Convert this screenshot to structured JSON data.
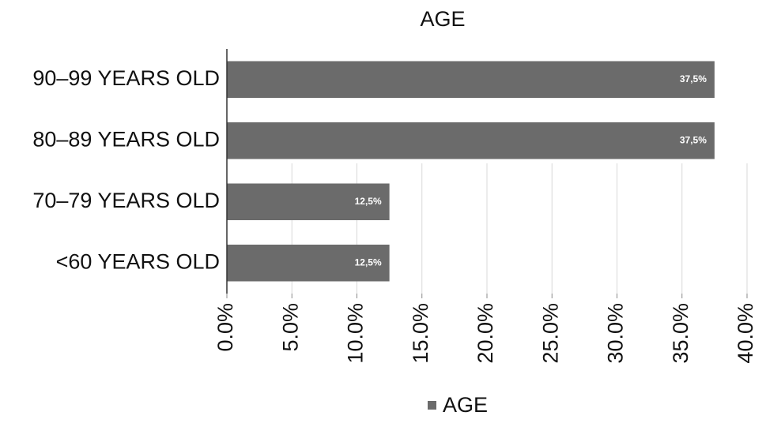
{
  "chart_data": {
    "type": "bar",
    "orientation": "horizontal",
    "title": "AGE",
    "categories": [
      "90–99 YEARS OLD",
      "80–89 YEARS OLD",
      "70–79 YEARS OLD",
      "<60 YEARS OLD"
    ],
    "series": [
      {
        "name": "AGE",
        "color": "#6b6b6b",
        "values": [
          37.5,
          37.5,
          12.5,
          12.5
        ],
        "value_labels": [
          "37,5%",
          "37,5%",
          "12,5%",
          "12,5%"
        ]
      }
    ],
    "xlim": [
      0,
      40
    ],
    "xticks": [
      {
        "value": 0,
        "label": "0.0%"
      },
      {
        "value": 5,
        "label": "5.0%"
      },
      {
        "value": 10,
        "label": "10.0%"
      },
      {
        "value": 15,
        "label": "15.0%"
      },
      {
        "value": 20,
        "label": "20.0%"
      },
      {
        "value": 25,
        "label": "25.0%"
      },
      {
        "value": 30,
        "label": "30.0%"
      },
      {
        "value": 35,
        "label": "35.0%"
      },
      {
        "value": 40,
        "label": "40.0%"
      }
    ],
    "grid": true,
    "legend": "bottom"
  }
}
